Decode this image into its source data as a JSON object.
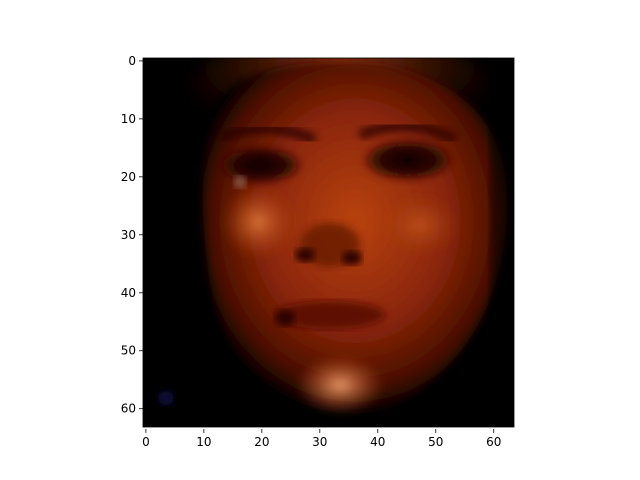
{
  "image": {
    "description_icon": "face-image-icon",
    "x_range": [
      0,
      63
    ],
    "y_range": [
      0,
      63
    ]
  },
  "axes": {
    "x_ticks": [
      {
        "value": 0,
        "label": "0"
      },
      {
        "value": 10,
        "label": "10"
      },
      {
        "value": 20,
        "label": "20"
      },
      {
        "value": 30,
        "label": "30"
      },
      {
        "value": 40,
        "label": "40"
      },
      {
        "value": 50,
        "label": "50"
      },
      {
        "value": 60,
        "label": "60"
      }
    ],
    "y_ticks": [
      {
        "value": 0,
        "label": "0"
      },
      {
        "value": 10,
        "label": "10"
      },
      {
        "value": 20,
        "label": "20"
      },
      {
        "value": 30,
        "label": "30"
      },
      {
        "value": 40,
        "label": "40"
      },
      {
        "value": 50,
        "label": "50"
      },
      {
        "value": 60,
        "label": "60"
      }
    ]
  },
  "colors": {
    "background": "#000000",
    "skin_dark": "#5a1204",
    "skin_mid": "#8a2a08",
    "skin_light": "#c24a14",
    "highlight": "#e08a4a",
    "eye_shadow": "#1a0500"
  }
}
